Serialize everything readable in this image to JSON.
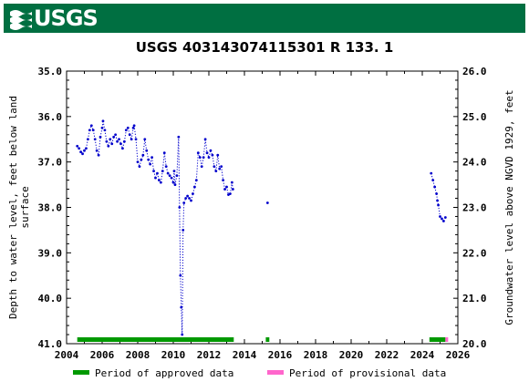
{
  "banner": {
    "logo_text": "USGS",
    "logo_icon": "usgs-wave-icon",
    "color": "#006f41"
  },
  "chart_data": {
    "type": "scatter",
    "title": "USGS 403143074115301 R   133. 1",
    "ylabel_left_lines": [
      "Depth to water level, feet below land",
      "surface"
    ],
    "ylabel_right": "Groundwater level above NGVD 1929, feet",
    "xlim": [
      2004,
      2026
    ],
    "ylim_left": [
      35.0,
      41.0
    ],
    "ylim_right": [
      26.0,
      20.0
    ],
    "x_ticks": [
      "2004",
      "2006",
      "2008",
      "2010",
      "2012",
      "2014",
      "2016",
      "2018",
      "2020",
      "2022",
      "2024",
      "2026"
    ],
    "y_ticks_left": [
      "35.0",
      "36.0",
      "37.0",
      "38.0",
      "39.0",
      "40.0",
      "41.0"
    ],
    "y_ticks_right": [
      "26.0",
      "25.0",
      "24.0",
      "23.0",
      "22.0",
      "21.0",
      "20.0"
    ],
    "series_color": "#0000cc",
    "series": [
      {
        "values": [
          [
            2004.6,
            36.65
          ],
          [
            2004.7,
            36.7
          ],
          [
            2004.8,
            36.78
          ],
          [
            2004.9,
            36.82
          ],
          [
            2005.0,
            36.75
          ],
          [
            2005.1,
            36.7
          ],
          [
            2005.2,
            36.5
          ],
          [
            2005.3,
            36.3
          ],
          [
            2005.4,
            36.2
          ],
          [
            2005.5,
            36.3
          ],
          [
            2005.6,
            36.5
          ],
          [
            2005.7,
            36.75
          ],
          [
            2005.8,
            36.85
          ],
          [
            2005.9,
            36.45
          ],
          [
            2006.0,
            36.25
          ],
          [
            2006.05,
            36.1
          ],
          [
            2006.15,
            36.3
          ],
          [
            2006.25,
            36.55
          ],
          [
            2006.35,
            36.65
          ],
          [
            2006.45,
            36.5
          ],
          [
            2006.55,
            36.6
          ],
          [
            2006.65,
            36.45
          ],
          [
            2006.75,
            36.4
          ],
          [
            2006.85,
            36.55
          ],
          [
            2006.95,
            36.5
          ],
          [
            2007.05,
            36.6
          ],
          [
            2007.15,
            36.7
          ],
          [
            2007.25,
            36.55
          ],
          [
            2007.35,
            36.3
          ],
          [
            2007.45,
            36.25
          ],
          [
            2007.55,
            36.4
          ],
          [
            2007.65,
            36.5
          ],
          [
            2007.75,
            36.25
          ],
          [
            2007.8,
            36.2
          ],
          [
            2007.9,
            36.5
          ],
          [
            2008.0,
            37.0
          ],
          [
            2008.1,
            37.1
          ],
          [
            2008.2,
            36.95
          ],
          [
            2008.3,
            36.85
          ],
          [
            2008.4,
            36.5
          ],
          [
            2008.5,
            36.75
          ],
          [
            2008.6,
            36.95
          ],
          [
            2008.7,
            37.05
          ],
          [
            2008.8,
            36.9
          ],
          [
            2008.9,
            37.2
          ],
          [
            2009.0,
            37.35
          ],
          [
            2009.1,
            37.25
          ],
          [
            2009.2,
            37.4
          ],
          [
            2009.3,
            37.45
          ],
          [
            2009.4,
            37.2
          ],
          [
            2009.5,
            36.8
          ],
          [
            2009.6,
            37.1
          ],
          [
            2009.7,
            37.25
          ],
          [
            2009.8,
            37.3
          ],
          [
            2009.9,
            37.35
          ],
          [
            2010.0,
            37.45
          ],
          [
            2010.05,
            37.2
          ],
          [
            2010.1,
            37.5
          ],
          [
            2010.2,
            37.3
          ],
          [
            2010.3,
            36.45
          ],
          [
            2010.35,
            38.0
          ],
          [
            2010.4,
            39.5
          ],
          [
            2010.45,
            40.2
          ],
          [
            2010.5,
            40.8
          ],
          [
            2010.55,
            38.5
          ],
          [
            2010.6,
            37.9
          ],
          [
            2010.7,
            37.8
          ],
          [
            2010.8,
            37.75
          ],
          [
            2010.9,
            37.8
          ],
          [
            2011.0,
            37.85
          ],
          [
            2011.1,
            37.7
          ],
          [
            2011.2,
            37.55
          ],
          [
            2011.3,
            37.4
          ],
          [
            2011.4,
            36.8
          ],
          [
            2011.5,
            36.9
          ],
          [
            2011.6,
            37.1
          ],
          [
            2011.7,
            36.9
          ],
          [
            2011.8,
            36.5
          ],
          [
            2011.9,
            36.8
          ],
          [
            2012.0,
            36.9
          ],
          [
            2012.1,
            36.75
          ],
          [
            2012.2,
            36.85
          ],
          [
            2012.3,
            37.1
          ],
          [
            2012.4,
            37.2
          ],
          [
            2012.5,
            36.85
          ],
          [
            2012.6,
            37.15
          ],
          [
            2012.7,
            37.1
          ],
          [
            2012.8,
            37.4
          ],
          [
            2012.9,
            37.6
          ],
          [
            2013.0,
            37.55
          ],
          [
            2013.1,
            37.72
          ],
          [
            2013.2,
            37.7
          ],
          [
            2013.3,
            37.45
          ],
          [
            2013.35,
            37.6
          ],
          [
            2015.3,
            37.9
          ],
          [
            2024.5,
            37.25
          ],
          [
            2024.6,
            37.4
          ],
          [
            2024.7,
            37.55
          ],
          [
            2024.8,
            37.7
          ],
          [
            2024.85,
            37.85
          ],
          [
            2024.9,
            37.95
          ],
          [
            2025.0,
            38.2
          ],
          [
            2025.1,
            38.25
          ],
          [
            2025.2,
            38.3
          ],
          [
            2025.3,
            38.22
          ]
        ]
      }
    ],
    "approved_periods": [
      [
        2004.6,
        2013.4
      ],
      [
        2015.2,
        2015.4
      ],
      [
        2024.4,
        2025.3
      ]
    ],
    "provisional_periods": [
      [
        2025.3,
        2025.4
      ]
    ],
    "legend": {
      "approved_label": "Period of approved data",
      "approved_color": "#009900",
      "provisional_label": "Period of provisional data",
      "provisional_color": "#ff66cc"
    }
  }
}
